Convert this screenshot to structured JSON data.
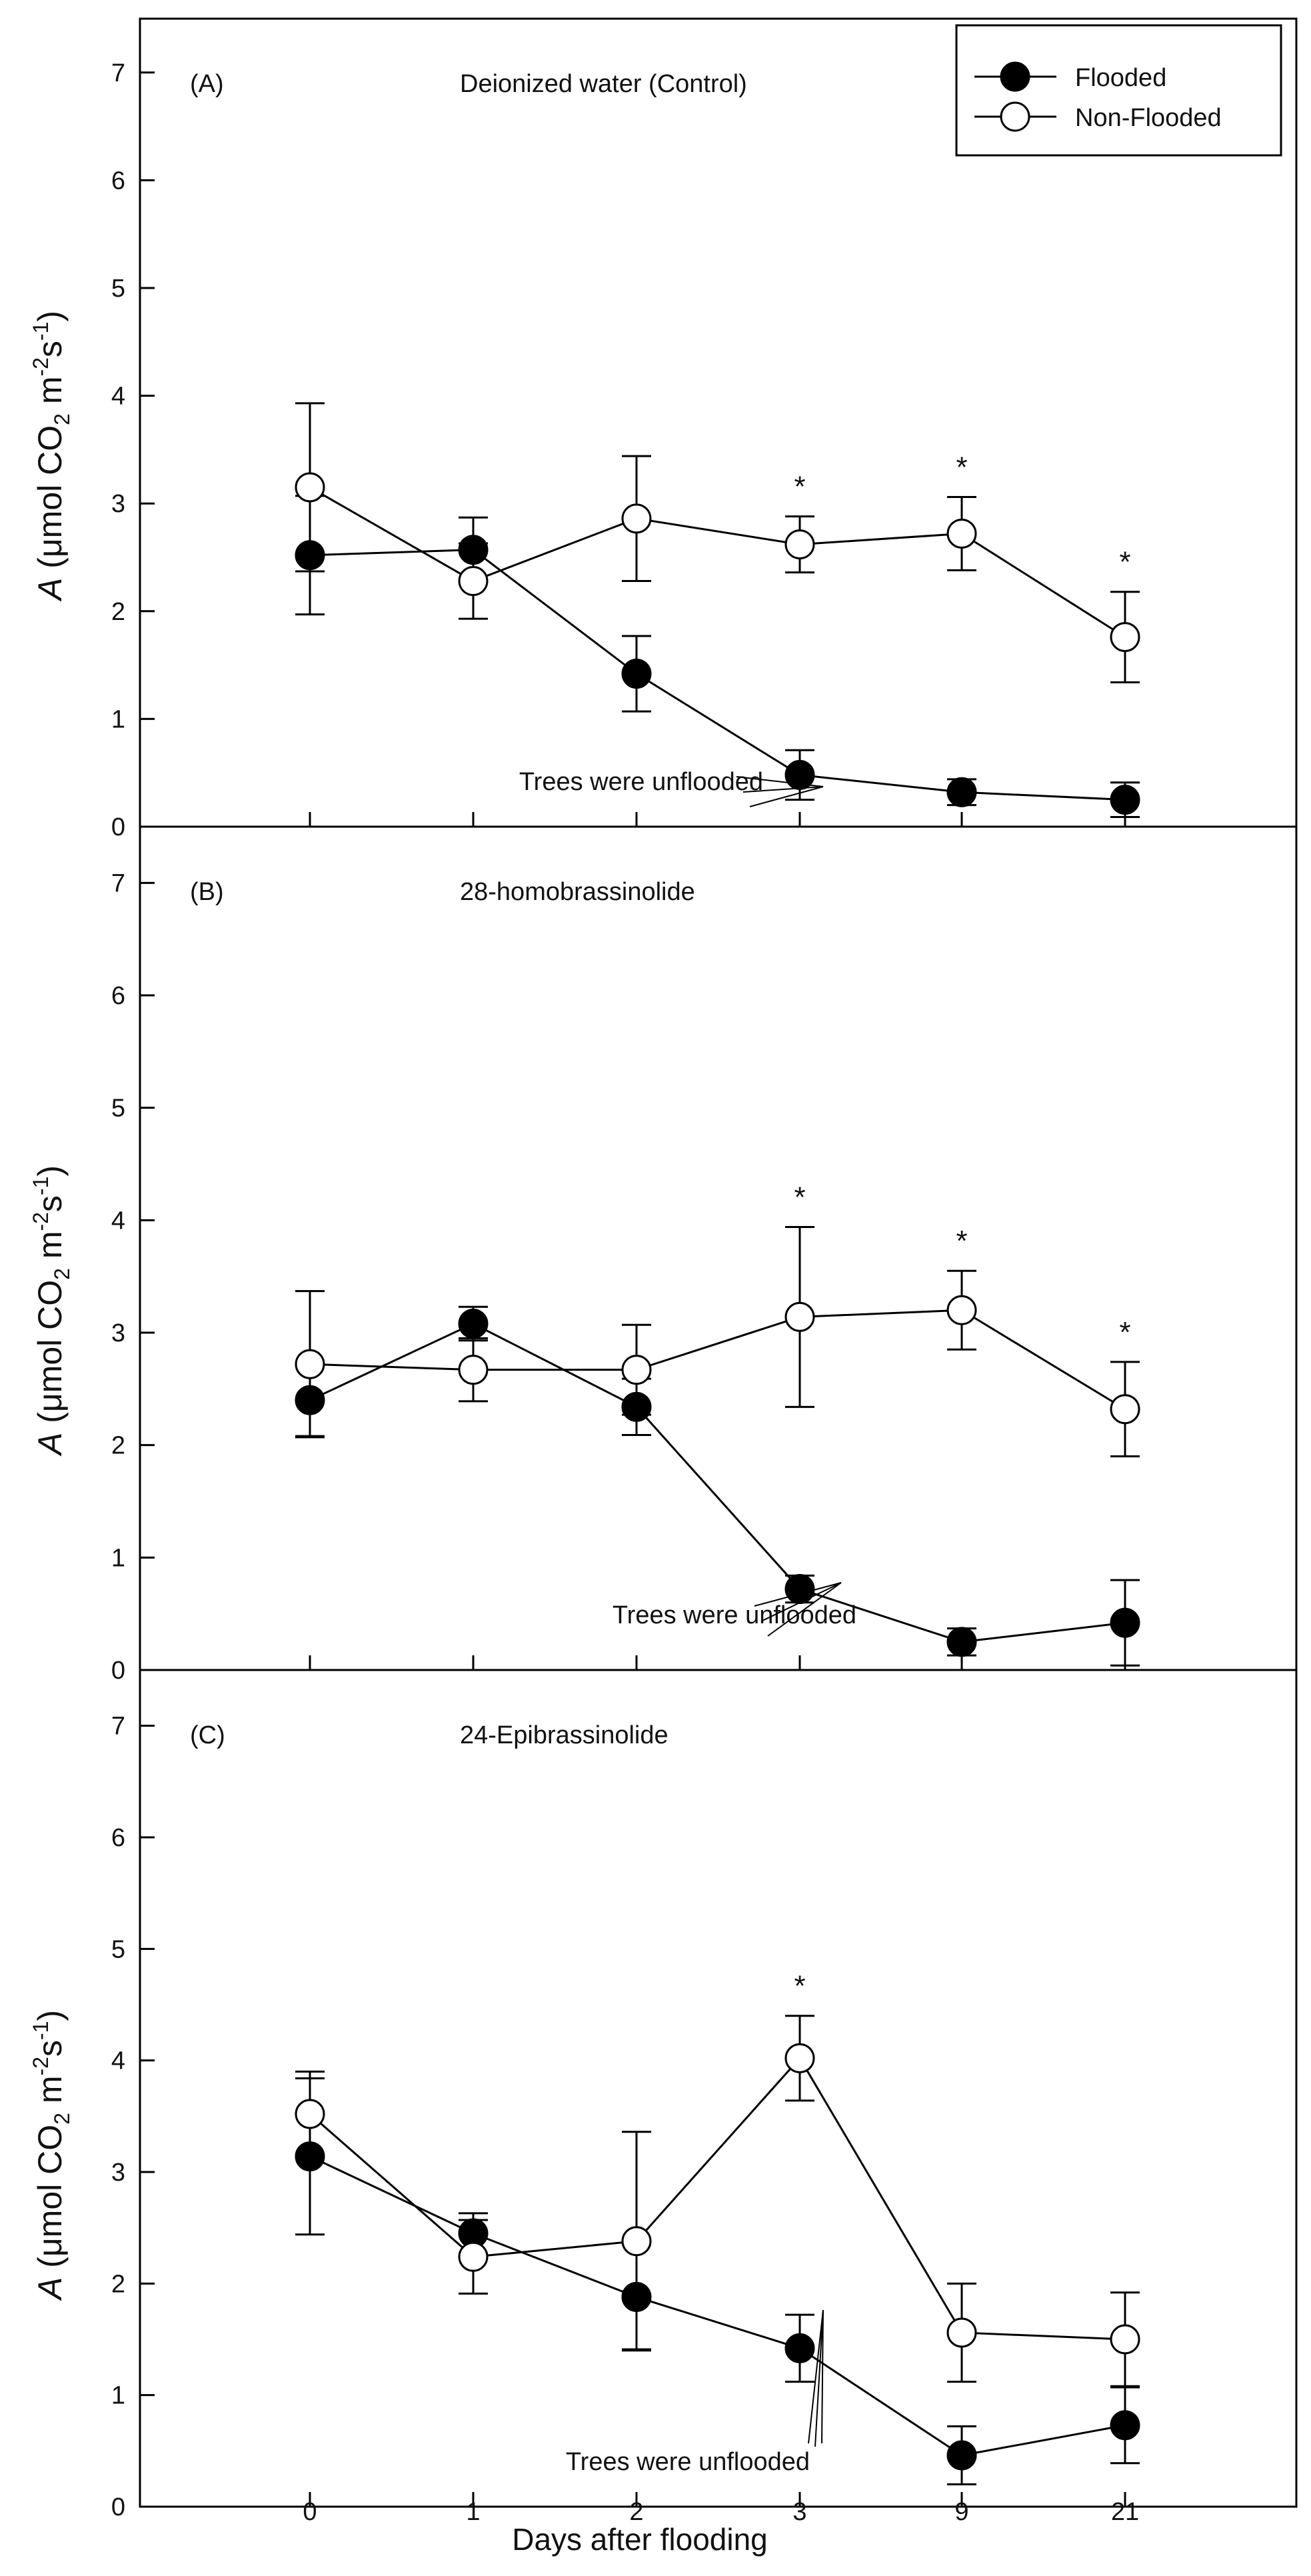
{
  "chart_data": {
    "type": "line",
    "x_tick_labels": [
      "0",
      "1",
      "2",
      "3",
      "9",
      "21"
    ],
    "xlabel": "Days after flooding",
    "ylabel": {
      "var": "A",
      "open": " (",
      "unit_main": "μmol CO",
      "sub_2": "2",
      "unit_m": " m",
      "sup_m2": "-2",
      "unit_s": "s",
      "sup_m1": "-1",
      "close": ")"
    },
    "y_ticks": [
      "0",
      "1",
      "2",
      "3",
      "4",
      "5",
      "6",
      "7"
    ],
    "ylim": [
      0,
      7.5
    ],
    "legend": {
      "flooded": "Flooded",
      "nonflooded": "Non-Flooded",
      "position": "top-right"
    },
    "panels": [
      {
        "label": "(A)",
        "title": "Deionized water (Control)",
        "annotation": "Trees were unflooded",
        "series": [
          {
            "name": "Flooded",
            "marker": "filled",
            "values": [
              2.52,
              2.57,
              1.42,
              0.48,
              0.32,
              0.25
            ],
            "errors": [
              0.55,
              0.3,
              0.35,
              0.23,
              0.12,
              0.16
            ]
          },
          {
            "name": "Non-Flooded",
            "marker": "open",
            "values": [
              3.15,
              2.28,
              2.86,
              2.62,
              2.72,
              1.76
            ],
            "errors": [
              0.78,
              0.35,
              0.58,
              0.26,
              0.34,
              0.42
            ]
          }
        ],
        "stars_at": [
          3,
          4,
          5
        ]
      },
      {
        "label": "(B)",
        "title": "28-homobrassinolide",
        "annotation": "Trees were unflooded",
        "series": [
          {
            "name": "Flooded",
            "marker": "filled",
            "values": [
              2.4,
              3.08,
              2.34,
              0.72,
              0.25,
              0.42
            ],
            "errors": [
              0.32,
              0.15,
              0.25,
              0.12,
              0.12,
              0.38
            ]
          },
          {
            "name": "Non-Flooded",
            "marker": "open",
            "values": [
              2.72,
              2.67,
              2.67,
              3.14,
              3.2,
              2.32
            ],
            "errors": [
              0.65,
              0.28,
              0.4,
              0.8,
              0.35,
              0.42
            ]
          }
        ],
        "stars_at": [
          3,
          4,
          5
        ]
      },
      {
        "label": "(C)",
        "title": "24-Epibrassinolide",
        "annotation": "Trees were unflooded",
        "series": [
          {
            "name": "Flooded",
            "marker": "filled",
            "values": [
              3.14,
              2.45,
              1.88,
              1.42,
              0.46,
              0.73
            ],
            "errors": [
              0.7,
              0.18,
              0.47,
              0.3,
              0.26,
              0.34
            ]
          },
          {
            "name": "Non-Flooded",
            "marker": "open",
            "values": [
              3.52,
              2.24,
              2.38,
              4.02,
              1.56,
              1.5
            ],
            "errors": [
              0.38,
              0.33,
              0.98,
              0.38,
              0.44,
              0.42
            ]
          }
        ],
        "stars_at": [
          3
        ]
      }
    ],
    "significance_marker": "*"
  }
}
